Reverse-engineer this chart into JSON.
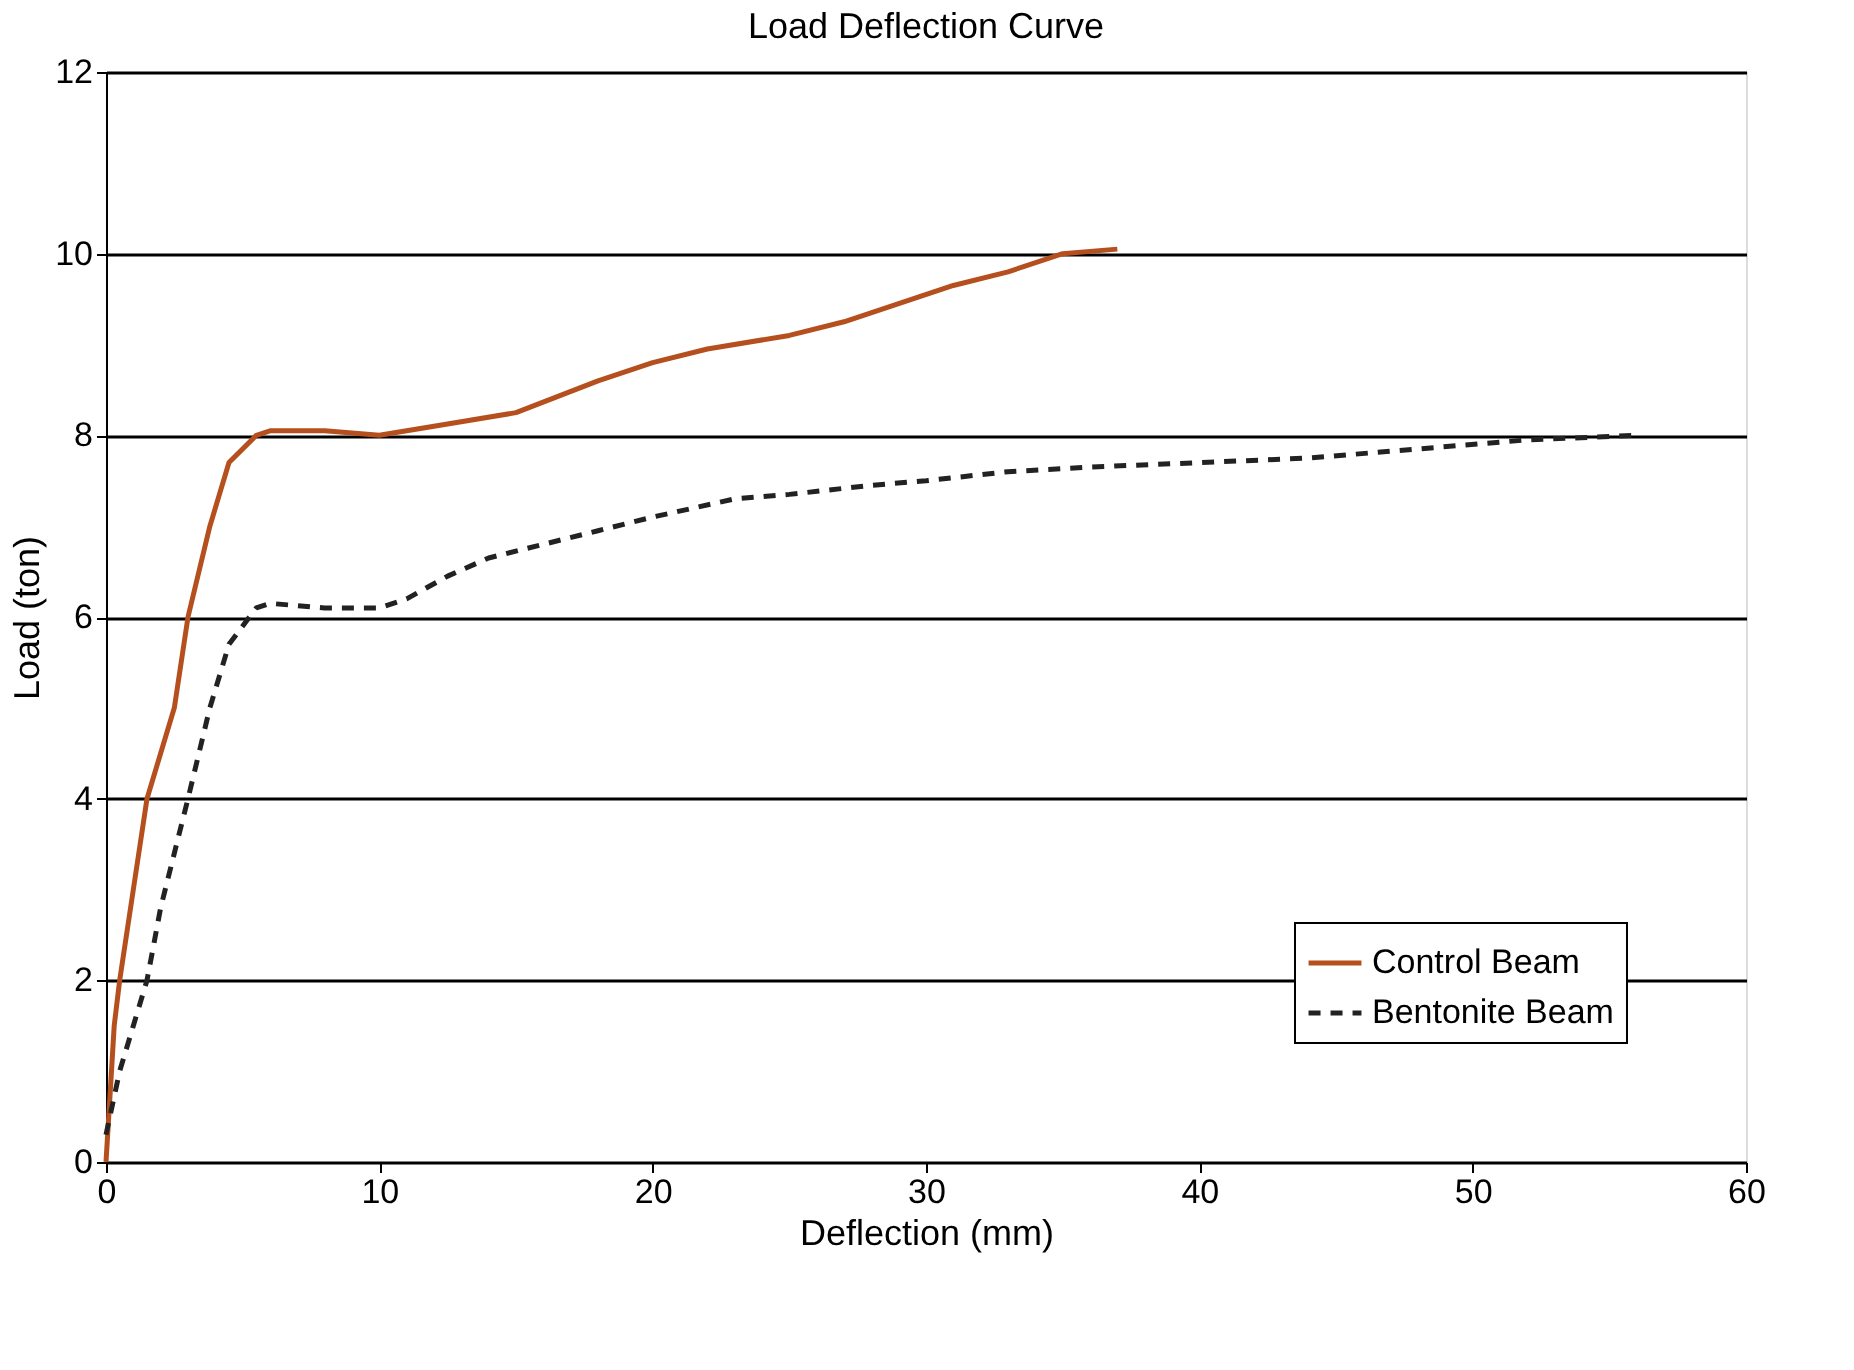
{
  "chart_data": {
    "type": "line",
    "title": "Load Deflection Curve",
    "xlabel": "Deflection (mm)",
    "ylabel": "Load (ton)",
    "xlim": [
      0,
      60
    ],
    "xticks": [
      0,
      10,
      20,
      30,
      40,
      50,
      60
    ],
    "ylim": [
      0,
      12
    ],
    "yticks": [
      0,
      2,
      4,
      6,
      8,
      10,
      12
    ],
    "grid": "y",
    "legend": "bottom right",
    "marker": "none",
    "series": [
      {
        "name": "Control Beam",
        "color": "#b5501e",
        "line_style": "solid",
        "x": [
          0,
          0.3,
          0.5,
          1,
          1.5,
          2.5,
          3,
          3.8,
          4.5,
          5.5,
          6,
          8,
          10,
          12,
          15,
          18,
          20,
          22,
          25,
          27,
          29,
          31,
          33,
          35,
          37
        ],
        "values": [
          0,
          1.5,
          2,
          3,
          4,
          5,
          6,
          7,
          7.7,
          8,
          8.05,
          8.05,
          8,
          8.1,
          8.25,
          8.6,
          8.8,
          8.95,
          9.1,
          9.25,
          9.45,
          9.65,
          9.8,
          10,
          10.05
        ]
      },
      {
        "name": "Bentonite Beam",
        "color": "#222222",
        "line_style": "dashed",
        "x": [
          0,
          0.5,
          1,
          1.5,
          2,
          3,
          3.8,
          4.5,
          5.5,
          6,
          8,
          10,
          11,
          12.5,
          14,
          16,
          18,
          20,
          23,
          25,
          28,
          30,
          33,
          36,
          40,
          44,
          48,
          52,
          56
        ],
        "values": [
          0.3,
          1,
          1.5,
          2,
          2.8,
          4,
          5,
          5.7,
          6.1,
          6.15,
          6.1,
          6.1,
          6.2,
          6.45,
          6.65,
          6.8,
          6.95,
          7.1,
          7.3,
          7.35,
          7.45,
          7.5,
          7.6,
          7.65,
          7.7,
          7.75,
          7.85,
          7.95,
          8.0
        ]
      }
    ]
  }
}
